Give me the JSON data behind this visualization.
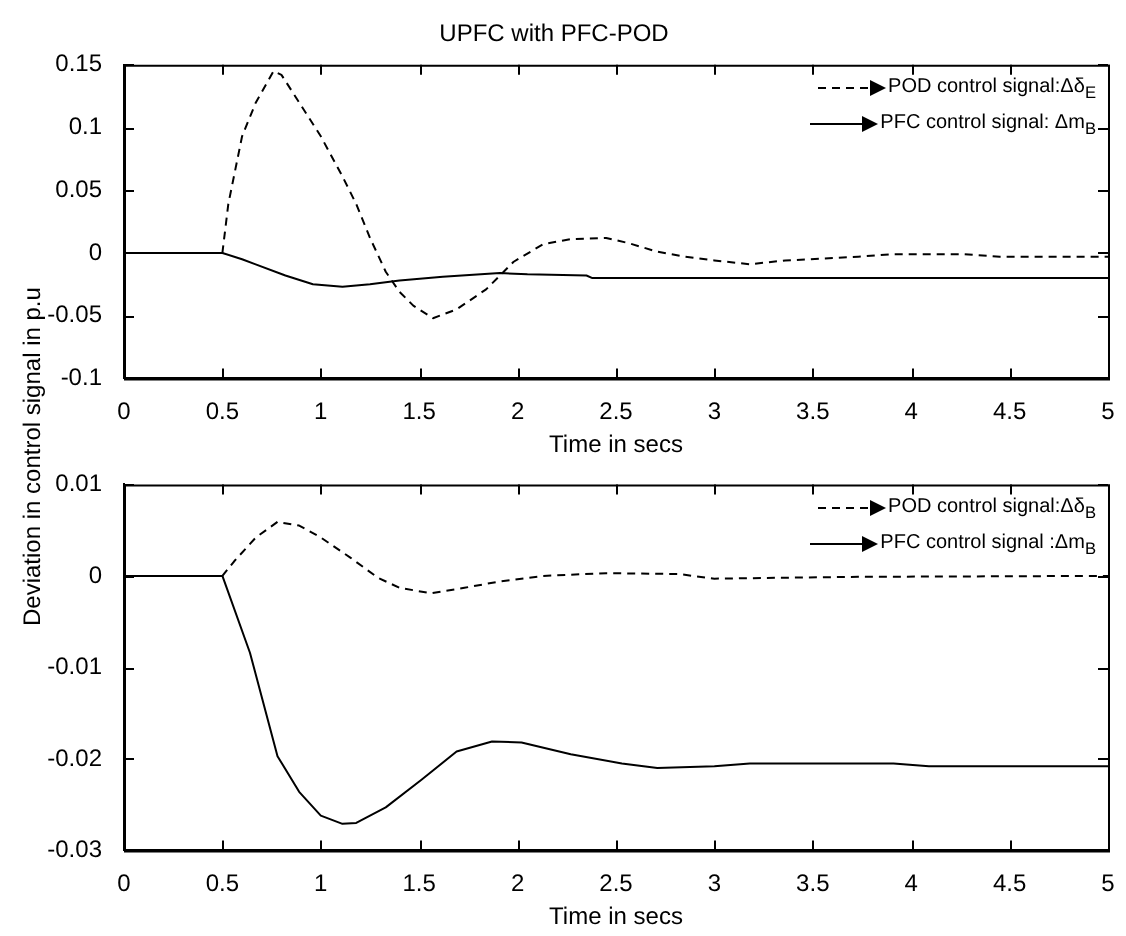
{
  "chart_data": [
    {
      "type": "line",
      "title": "UPFC with PFC-POD",
      "xlabel": "Time in secs",
      "ylabel": "Deviation in control signal in p.u",
      "xlim": [
        0,
        5
      ],
      "xticks": [
        0,
        0.5,
        1,
        1.5,
        2,
        2.5,
        3,
        3.5,
        4,
        4.5,
        5
      ],
      "ylim": [
        -0.1,
        0.15
      ],
      "yticks": [
        -0.1,
        -0.05,
        0,
        0.05,
        0.1,
        0.15
      ],
      "legend": "top right",
      "marker": "none",
      "series": [
        {
          "name": "POD control signal:Δδ$_{E}$",
          "color": "#000000",
          "line_style": "dashed",
          "x": [
            0,
            0.5,
            0.53,
            0.6,
            0.67,
            0.76,
            0.8,
            0.89,
            1.0,
            1.11,
            1.18,
            1.25,
            1.33,
            1.4,
            1.47,
            1.57,
            1.69,
            1.84,
            1.98,
            2.13,
            2.27,
            2.45,
            2.56,
            2.71,
            2.85,
            3.0,
            3.18,
            3.36,
            3.73,
            3.91,
            4.27,
            4.45,
            5
          ],
          "values": [
            0,
            0,
            0.039,
            0.093,
            0.12,
            0.145,
            0.142,
            0.12,
            0.093,
            0.061,
            0.039,
            0.012,
            -0.015,
            -0.031,
            -0.042,
            -0.052,
            -0.045,
            -0.029,
            -0.007,
            0.007,
            0.011,
            0.012,
            0.008,
            0.001,
            -0.003,
            -0.006,
            -0.009,
            -0.006,
            -0.003,
            -0.001,
            -0.001,
            -0.003,
            -0.003
          ]
        },
        {
          "name": "PFC control signal: Δm$_{B}$",
          "color": "#000000",
          "line_style": "solid",
          "x": [
            0,
            0.5,
            0.6,
            0.82,
            0.96,
            1.11,
            1.25,
            1.4,
            1.62,
            1.91,
            2.05,
            2.35,
            2.38,
            5
          ],
          "values": [
            0,
            0,
            -0.005,
            -0.018,
            -0.025,
            -0.027,
            -0.025,
            -0.022,
            -0.019,
            -0.016,
            -0.017,
            -0.018,
            -0.02,
            -0.02
          ]
        }
      ]
    },
    {
      "type": "line",
      "xlabel": "Time in secs",
      "xlim": [
        0,
        5
      ],
      "xticks": [
        0,
        0.5,
        1,
        1.5,
        2,
        2.5,
        3,
        3.5,
        4,
        4.5,
        5
      ],
      "ylim": [
        -0.03,
        0.01
      ],
      "yticks": [
        -0.03,
        -0.02,
        -0.01,
        0,
        0.01
      ],
      "legend": "top right",
      "marker": "none",
      "series": [
        {
          "name": "POD control signal:Δδ$_{B}$",
          "color": "#000000",
          "line_style": "dashed",
          "x": [
            0,
            0.5,
            0.56,
            0.67,
            0.78,
            0.89,
            1.0,
            1.15,
            1.29,
            1.4,
            1.56,
            1.73,
            1.91,
            2.13,
            2.45,
            2.82,
            3.0,
            3.36,
            3.73,
            5
          ],
          "values": [
            0,
            0,
            0.0016,
            0.0042,
            0.0059,
            0.0055,
            0.0042,
            0.002,
            -0.0002,
            -0.0013,
            -0.0019,
            -0.0013,
            -0.0006,
            0,
            0.0003,
            0.0002,
            -0.0003,
            -0.0002,
            -0.0001,
            0
          ]
        },
        {
          "name": "PFC control signal :Δm$_{B}$",
          "color": "#000000",
          "line_style": "solid",
          "x": [
            0,
            0.5,
            0.64,
            0.78,
            0.89,
            1.0,
            1.11,
            1.18,
            1.33,
            1.51,
            1.69,
            1.87,
            2.02,
            2.27,
            2.53,
            2.71,
            3.0,
            3.18,
            3.91,
            4.09,
            5
          ],
          "values": [
            0,
            0,
            -0.0084,
            -0.0197,
            -0.0236,
            -0.0262,
            -0.0271,
            -0.027,
            -0.0253,
            -0.0223,
            -0.0192,
            -0.0181,
            -0.0182,
            -0.0195,
            -0.0205,
            -0.021,
            -0.0208,
            -0.0205,
            -0.0205,
            -0.0208,
            -0.0208
          ]
        }
      ]
    }
  ]
}
